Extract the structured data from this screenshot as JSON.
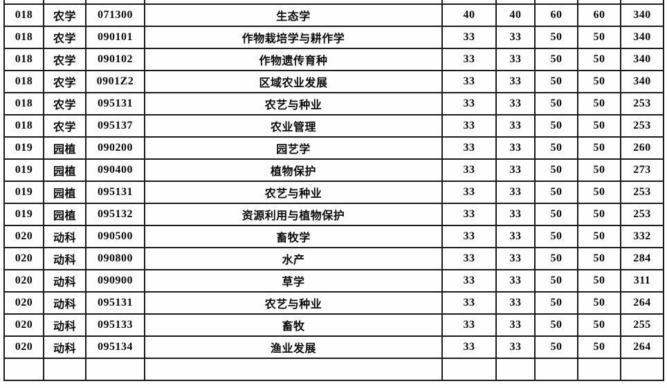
{
  "page": {
    "background_color": "#fefefe"
  },
  "table": {
    "border_color": "#1a1a1a",
    "text_color": "#0a0a0a",
    "column_count": 9,
    "rows": [
      [
        "018",
        "农学",
        "071300",
        "生态学",
        "40",
        "40",
        "60",
        "60",
        "340"
      ],
      [
        "018",
        "农学",
        "090101",
        "作物栽培学与耕作学",
        "33",
        "33",
        "50",
        "50",
        "340"
      ],
      [
        "018",
        "农学",
        "090102",
        "作物遗传育种",
        "33",
        "33",
        "50",
        "50",
        "340"
      ],
      [
        "018",
        "农学",
        "0901Z2",
        "区域农业发展",
        "33",
        "33",
        "50",
        "50",
        "340"
      ],
      [
        "018",
        "农学",
        "095131",
        "农艺与种业",
        "33",
        "33",
        "50",
        "50",
        "253"
      ],
      [
        "018",
        "农学",
        "095137",
        "农业管理",
        "33",
        "33",
        "50",
        "50",
        "253"
      ],
      [
        "019",
        "园植",
        "090200",
        "园艺学",
        "33",
        "33",
        "50",
        "50",
        "260"
      ],
      [
        "019",
        "园植",
        "090400",
        "植物保护",
        "33",
        "33",
        "50",
        "50",
        "273"
      ],
      [
        "019",
        "园植",
        "095131",
        "农艺与种业",
        "33",
        "33",
        "50",
        "50",
        "253"
      ],
      [
        "019",
        "园植",
        "095132",
        "资源利用与植物保护",
        "33",
        "33",
        "50",
        "50",
        "253"
      ],
      [
        "020",
        "动科",
        "090500",
        "畜牧学",
        "33",
        "33",
        "50",
        "50",
        "332"
      ],
      [
        "020",
        "动科",
        "090800",
        "水产",
        "33",
        "33",
        "50",
        "50",
        "284"
      ],
      [
        "020",
        "动科",
        "090900",
        "草学",
        "33",
        "33",
        "50",
        "50",
        "311"
      ],
      [
        "020",
        "动科",
        "095131",
        "农艺与种业",
        "33",
        "33",
        "50",
        "50",
        "264"
      ],
      [
        "020",
        "动科",
        "095133",
        "畜牧",
        "33",
        "33",
        "50",
        "50",
        "255"
      ],
      [
        "020",
        "动科",
        "095134",
        "渔业发展",
        "33",
        "33",
        "50",
        "50",
        "264"
      ]
    ]
  }
}
